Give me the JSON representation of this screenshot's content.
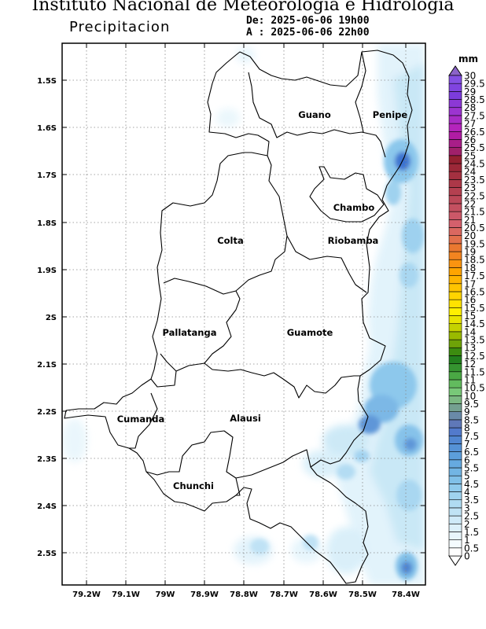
{
  "header": {
    "title": "Instituto Nacional de Meteorologia e Hidrologia",
    "variable": "Precipitacion",
    "from_label": "De:",
    "from_value": "2025-06-06 19h00",
    "to_label": "A :",
    "to_value": "2025-06-06 22h00"
  },
  "map": {
    "lat_ticks": [
      "1.5S",
      "1.6S",
      "1.7S",
      "1.8S",
      "1.9S",
      "2S",
      "2.1S",
      "2.2S",
      "2.3S",
      "2.4S",
      "2.5S"
    ],
    "lon_ticks": [
      "79.2W",
      "79.1W",
      "79W",
      "78.9W",
      "78.8W",
      "78.7W",
      "78.6W",
      "78.5W",
      "78.4W"
    ],
    "cantons": [
      {
        "name": "Guano"
      },
      {
        "name": "Penipe"
      },
      {
        "name": "Chambo"
      },
      {
        "name": "Colta"
      },
      {
        "name": "Riobamba"
      },
      {
        "name": "Pallatanga"
      },
      {
        "name": "Guamote"
      },
      {
        "name": "Cumanda"
      },
      {
        "name": "Alausi"
      },
      {
        "name": "Chunchi"
      }
    ]
  },
  "colorbar": {
    "unit": "mm",
    "labels": [
      "0",
      "0.5",
      "1",
      "1.5",
      "2",
      "2.5",
      "3",
      "3.5",
      "4",
      "4.5",
      "5",
      "5.5",
      "6",
      "6.5",
      "7",
      "7.5",
      "8",
      "8.5",
      "9",
      "9.5",
      "10",
      "10.5",
      "11",
      "11.5",
      "12",
      "12.5",
      "13",
      "13.5",
      "14",
      "14.5",
      "15",
      "15.5",
      "16",
      "16.5",
      "17",
      "17.5",
      "18",
      "18.5",
      "19",
      "19.5",
      "20",
      "20.5",
      "21",
      "21.5",
      "22",
      "22.5",
      "23",
      "23.5",
      "24",
      "24.5",
      "25",
      "25.5",
      "26",
      "26.5",
      "27",
      "27.5",
      "28",
      "28.5",
      "29",
      "29.5",
      "30"
    ],
    "colors": [
      "#ffffff",
      "#f4fbfe",
      "#e8f6fc",
      "#dcf0fa",
      "#cfeaf8",
      "#c0e3f5",
      "#b0dcf2",
      "#a0d3ef",
      "#8fcaec",
      "#80c0e8",
      "#72b5e4",
      "#66aae0",
      "#5c9edb",
      "#5592d6",
      "#5186d1",
      "#527acc",
      "#5f78b8",
      "#6a8aa8",
      "#74a090",
      "#7bb882",
      "#78c878",
      "#62bb5e",
      "#4aa844",
      "#359430",
      "#22801e",
      "#3c8c10",
      "#6ea208",
      "#9aba00",
      "#c4d200",
      "#e8e400",
      "#fff000",
      "#ffe200",
      "#ffd400",
      "#ffc400",
      "#ffb400",
      "#ffa400",
      "#fa9410",
      "#f28420",
      "#ea7830",
      "#e2704c",
      "#da6860",
      "#d4606c",
      "#cc5868",
      "#c45060",
      "#bc4858",
      "#b44050",
      "#ac3848",
      "#a43040",
      "#9c2838",
      "#942030",
      "#a0206a",
      "#a81e88",
      "#b01ca4",
      "#b424bc",
      "#a82cc6",
      "#9c34d0",
      "#8c38d6",
      "#7c3cdc",
      "#8044e0",
      "#8450e4"
    ],
    "max_color": "#8b63c9"
  }
}
